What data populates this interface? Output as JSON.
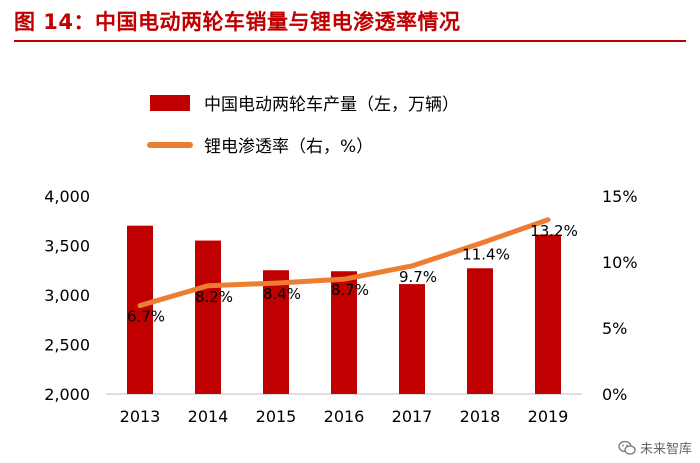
{
  "header": {
    "title": "图 14：中国电动两轮车销量与锂电渗透率情况"
  },
  "watermark": {
    "text": "未来智库",
    "icon": "wechat-icon"
  },
  "colors": {
    "bar": "#c00000",
    "line": "#ed7d31",
    "title": "#c00000"
  },
  "chart_data": {
    "type": "bar+line",
    "title": "中国电动两轮车销量与锂电渗透率情况",
    "categories": [
      "2013",
      "2014",
      "2015",
      "2016",
      "2017",
      "2018",
      "2019"
    ],
    "series": [
      {
        "name": "中国电动两轮车产量（左，万辆）",
        "type": "bar",
        "axis": "left",
        "values": [
          3700,
          3550,
          3250,
          3240,
          3110,
          3270,
          3610
        ]
      },
      {
        "name": "锂电渗透率（右，%）",
        "type": "line",
        "axis": "right",
        "values": [
          6.7,
          8.2,
          8.4,
          8.7,
          9.7,
          11.4,
          13.2
        ],
        "labels": [
          "6.7%",
          "8.2%",
          "8.4%",
          "8.7%",
          "9.7%",
          "11.4%",
          "13.2%"
        ]
      }
    ],
    "y_left": {
      "min": 2000,
      "max": 4000,
      "ticks": [
        2000,
        2500,
        3000,
        3500,
        4000
      ],
      "tick_labels": [
        "2,000",
        "2,500",
        "3,000",
        "3,500",
        "4,000"
      ]
    },
    "y_right": {
      "min": 0,
      "max": 15,
      "ticks": [
        0,
        5,
        10,
        15
      ],
      "tick_labels": [
        "0%",
        "5%",
        "10%",
        "15%"
      ]
    },
    "legend": {
      "position": "top-center",
      "entries": [
        "中国电动两轮车产量（左，万辆）",
        "锂电渗透率（右，%）"
      ]
    },
    "grid": false
  }
}
